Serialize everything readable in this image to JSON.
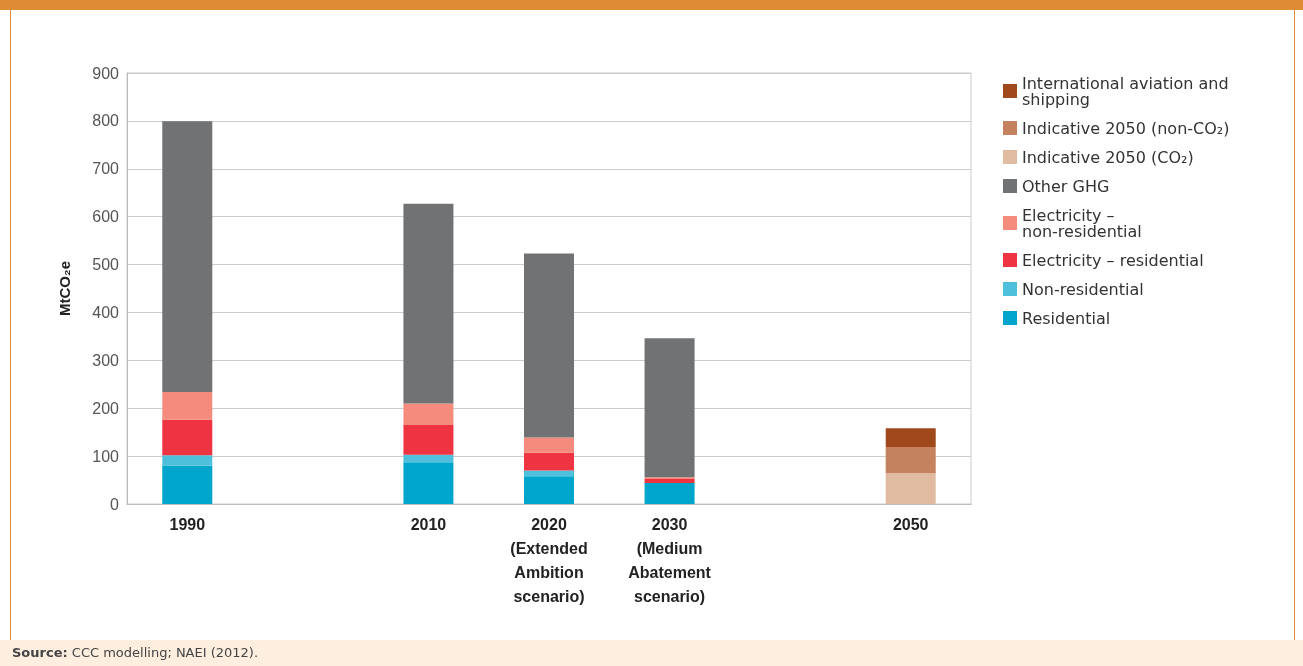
{
  "chart_data": {
    "type": "bar",
    "stacked": true,
    "ylabel": "MtCO₂e",
    "categories": [
      "1990",
      null,
      "2010",
      "2020 (Extended Ambition scenario)",
      "2030 (Medium Abatement scenario)",
      null,
      "2050"
    ],
    "series": [
      {
        "name": "Residential",
        "color": "#00a5cc",
        "values": [
          80,
          null,
          87,
          58,
          44,
          null,
          null
        ]
      },
      {
        "name": "Non-residential",
        "color": "#4fc0dc",
        "values": [
          22,
          null,
          16,
          12,
          null,
          null,
          null
        ]
      },
      {
        "name": "Electricity – residential",
        "color": "#ee3342",
        "values": [
          74,
          null,
          62,
          37,
          8,
          null,
          null
        ]
      },
      {
        "name": "Electricity – non-residential",
        "color": "#f48b7d",
        "values": [
          58,
          null,
          45,
          32,
          4,
          null,
          null
        ]
      },
      {
        "name": "Other GHG",
        "color": "#717274",
        "values": [
          565,
          null,
          417,
          384,
          290,
          null,
          null
        ]
      },
      {
        "name": "Indicative 2050 (CO₂)",
        "color": "#e0bba1",
        "values": [
          null,
          null,
          null,
          null,
          null,
          null,
          64
        ]
      },
      {
        "name": "Indicative 2050 (non-CO₂)",
        "color": "#c4825f",
        "values": [
          null,
          null,
          null,
          null,
          null,
          null,
          55
        ]
      },
      {
        "name": "International aviation and shipping",
        "color": "#a0491d",
        "values": [
          null,
          null,
          null,
          null,
          null,
          null,
          39
        ]
      }
    ],
    "ylim": [
      0,
      900
    ],
    "yticks": [
      0,
      100,
      200,
      300,
      400,
      500,
      600,
      700,
      800,
      900
    ],
    "grid": "y",
    "legend": "right",
    "annotations": [
      "Source: CCC modelling; NAEI (2012)."
    ]
  }
}
